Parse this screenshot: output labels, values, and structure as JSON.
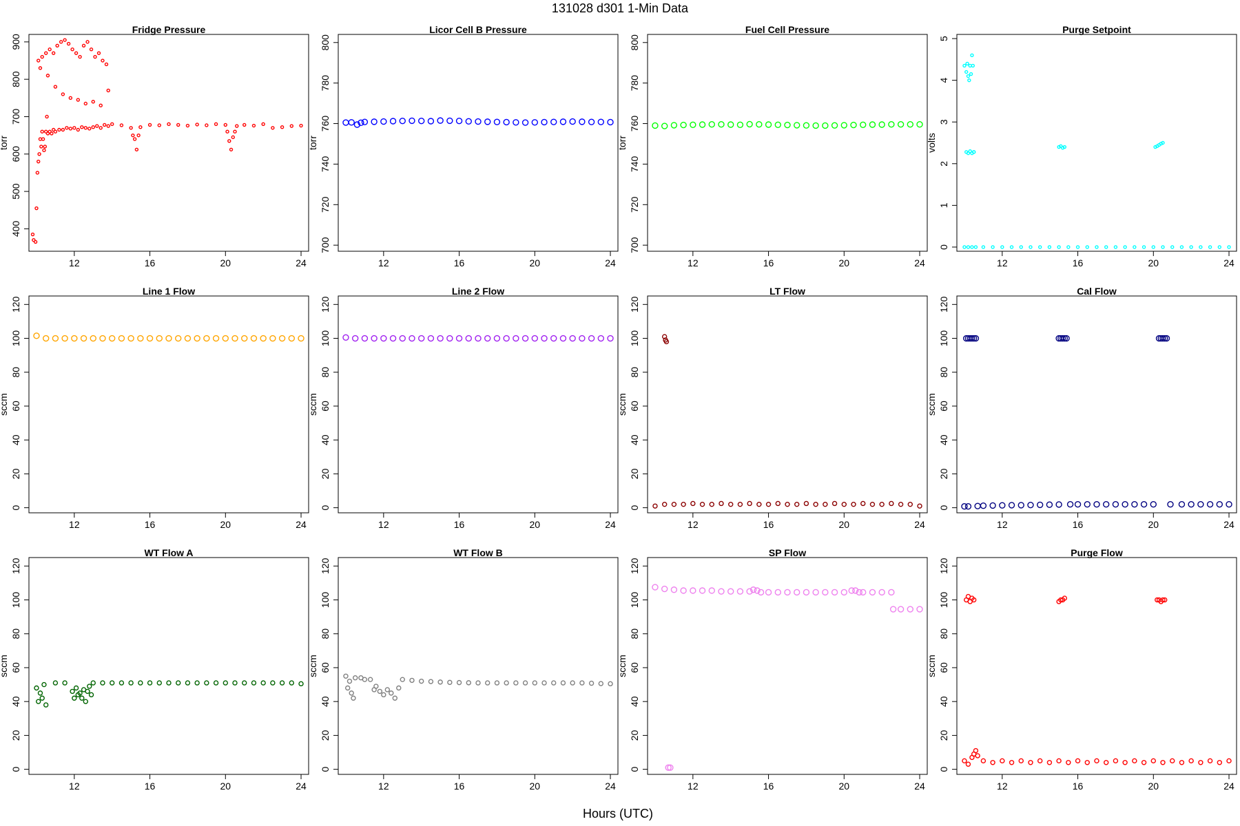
{
  "figure": {
    "title": "131028   d301   1-Min Data",
    "xlabel": "Hours (UTC)"
  },
  "chart_data": [
    {
      "type": "scatter",
      "title": "Fridge Pressure",
      "ylabel": "torr",
      "color": "#ff0000",
      "xlim": [
        9.6,
        24.4
      ],
      "ylim": [
        340,
        920
      ],
      "xticks": [
        12,
        16,
        20,
        24
      ],
      "yticks": [
        400,
        500,
        600,
        700,
        800,
        900
      ],
      "x": [
        9.8,
        9.85,
        9.95,
        10.0,
        10.05,
        10.1,
        10.15,
        10.2,
        10.25,
        10.3,
        10.35,
        10.4,
        10.45,
        10.5,
        10.55,
        10.6,
        10.7,
        10.8,
        10.9,
        11.0,
        11.2,
        11.4,
        11.6,
        11.8,
        12.0,
        12.2,
        12.4,
        12.6,
        12.8,
        13.0,
        13.2,
        13.4,
        13.6,
        13.8,
        14.0,
        14.5,
        15.0,
        15.1,
        15.2,
        15.3,
        15.4,
        15.5,
        16.0,
        16.5,
        17.0,
        17.5,
        18.0,
        18.5,
        19.0,
        19.5,
        20.0,
        20.1,
        20.2,
        20.3,
        20.4,
        20.5,
        20.6,
        21.0,
        21.5,
        22.0,
        22.5,
        23.0,
        23.5,
        24.0,
        10.1,
        10.3,
        10.5,
        10.7,
        10.9,
        11.1,
        11.3,
        11.5,
        11.7,
        11.9,
        12.1,
        12.3,
        12.5,
        12.7,
        12.9,
        13.1,
        13.3,
        13.5,
        13.7,
        10.2,
        10.6,
        11.0,
        11.4,
        11.8,
        12.2,
        12.6,
        13.0,
        13.4,
        13.8
      ],
      "y": [
        385,
        370,
        365,
        455,
        550,
        580,
        600,
        640,
        620,
        660,
        640,
        610,
        620,
        660,
        700,
        655,
        660,
        655,
        665,
        660,
        665,
        665,
        670,
        668,
        670,
        665,
        672,
        670,
        668,
        672,
        675,
        670,
        678,
        675,
        680,
        677,
        670,
        650,
        640,
        612,
        650,
        672,
        678,
        677,
        680,
        678,
        676,
        679,
        677,
        680,
        678,
        660,
        635,
        612,
        645,
        660,
        675,
        678,
        676,
        680,
        670,
        672,
        675,
        676,
        850,
        860,
        870,
        880,
        870,
        890,
        900,
        905,
        895,
        880,
        870,
        860,
        890,
        900,
        880,
        860,
        870,
        850,
        840,
        830,
        810,
        780,
        760,
        750,
        745,
        735,
        740,
        730,
        770
      ],
      "size": 2
    },
    {
      "type": "scatter",
      "title": "Licor Cell B Pressure",
      "ylabel": "torr",
      "color": "#0000ff",
      "xlim": [
        9.6,
        24.4
      ],
      "ylim": [
        697,
        804
      ],
      "xticks": [
        12,
        16,
        20,
        24
      ],
      "yticks": [
        700,
        720,
        740,
        760,
        780,
        800
      ],
      "x": [
        10.0,
        10.3,
        10.6,
        10.8,
        11.0,
        11.5,
        12.0,
        12.5,
        13.0,
        13.5,
        14.0,
        14.5,
        15.0,
        15.5,
        16.0,
        16.5,
        17.0,
        17.5,
        18.0,
        18.5,
        19.0,
        19.5,
        20.0,
        20.5,
        21.0,
        21.5,
        22.0,
        22.5,
        23.0,
        23.5,
        24.0
      ],
      "y": [
        760.5,
        760.6,
        759.5,
        760.4,
        760.8,
        760.9,
        761.0,
        761.2,
        761.3,
        761.4,
        761.3,
        761.2,
        761.5,
        761.4,
        761.3,
        761.1,
        761.0,
        760.9,
        760.8,
        760.7,
        760.6,
        760.5,
        760.6,
        760.7,
        760.8,
        760.9,
        761.0,
        760.9,
        760.8,
        760.8,
        760.7
      ],
      "size": 4
    },
    {
      "type": "scatter",
      "title": "Fuel Cell Pressure",
      "ylabel": "torr",
      "color": "#00ff00",
      "xlim": [
        9.6,
        24.4
      ],
      "ylim": [
        697,
        804
      ],
      "xticks": [
        12,
        16,
        20,
        24
      ],
      "yticks": [
        700,
        720,
        740,
        760,
        780,
        800
      ],
      "x": [
        10.0,
        10.5,
        11.0,
        11.5,
        12.0,
        12.5,
        13.0,
        13.5,
        14.0,
        14.5,
        15.0,
        15.5,
        16.0,
        16.5,
        17.0,
        17.5,
        18.0,
        18.5,
        19.0,
        19.5,
        20.0,
        20.5,
        21.0,
        21.5,
        22.0,
        22.5,
        23.0,
        23.5,
        24.0
      ],
      "y": [
        759.0,
        758.8,
        759.2,
        759.3,
        759.4,
        759.5,
        759.6,
        759.6,
        759.5,
        759.4,
        759.7,
        759.6,
        759.5,
        759.4,
        759.3,
        759.2,
        759.1,
        759.0,
        759.0,
        759.1,
        759.2,
        759.3,
        759.4,
        759.5,
        759.5,
        759.6,
        759.6,
        759.6,
        759.6
      ],
      "size": 4
    },
    {
      "type": "scatter",
      "title": "Purge Setpoint",
      "ylabel": "volts",
      "color": "#00ffff",
      "xlim": [
        9.6,
        24.4
      ],
      "ylim": [
        -0.1,
        5.1
      ],
      "xticks": [
        12,
        16,
        20,
        24
      ],
      "yticks": [
        0,
        1,
        2,
        3,
        4,
        5
      ],
      "x": [
        10.0,
        10.1,
        10.15,
        10.2,
        10.25,
        10.3,
        10.35,
        10.4,
        10.45,
        10.5,
        10.1,
        10.2,
        10.3,
        10.4,
        10.5,
        10.0,
        10.2,
        10.4,
        10.6,
        11.0,
        11.5,
        12.0,
        12.5,
        13.0,
        13.5,
        14.0,
        14.5,
        15.0,
        15.5,
        16.0,
        16.5,
        17.0,
        17.5,
        18.0,
        18.5,
        19.0,
        19.5,
        20.0,
        20.5,
        21.0,
        21.5,
        22.0,
        22.5,
        23.0,
        23.5,
        24.0,
        15.0,
        15.1,
        15.2,
        15.3,
        20.1,
        20.2,
        20.3,
        20.4,
        20.5
      ],
      "y": [
        4.35,
        4.2,
        4.4,
        4.1,
        4.0,
        4.35,
        4.15,
        4.6,
        4.35,
        2.28,
        2.28,
        2.25,
        2.3,
        2.25,
        2.28,
        0,
        0,
        0,
        0,
        0,
        0,
        0,
        0,
        0,
        0,
        0,
        0,
        0,
        0,
        0,
        0,
        0,
        0,
        0,
        0,
        0,
        0,
        0,
        0,
        0,
        0,
        0,
        0,
        0,
        0,
        0,
        2.4,
        2.42,
        2.38,
        2.4,
        2.4,
        2.42,
        2.45,
        2.48,
        2.5
      ],
      "size": 2
    },
    {
      "type": "scatter",
      "title": "Line 1 Flow",
      "ylabel": "sccm",
      "color": "#ffa500",
      "xlim": [
        9.6,
        24.4
      ],
      "ylim": [
        -3,
        125
      ],
      "xticks": [
        12,
        16,
        20,
        24
      ],
      "yticks": [
        0,
        20,
        40,
        60,
        80,
        100,
        120
      ],
      "x": [
        10.0,
        10.5,
        11.0,
        11.5,
        12.0,
        12.5,
        13.0,
        13.5,
        14.0,
        14.5,
        15.0,
        15.5,
        16.0,
        16.5,
        17.0,
        17.5,
        18.0,
        18.5,
        19.0,
        19.5,
        20.0,
        20.5,
        21.0,
        21.5,
        22.0,
        22.5,
        23.0,
        23.5,
        24.0
      ],
      "y": [
        101.5,
        100,
        100,
        100,
        100,
        100,
        100,
        100,
        100,
        100,
        100,
        100,
        100,
        100,
        100,
        100,
        100,
        100,
        100,
        100,
        100,
        100,
        100,
        100,
        100,
        100,
        100,
        100,
        100
      ],
      "size": 4
    },
    {
      "type": "scatter",
      "title": "Line 2 Flow",
      "ylabel": "sccm",
      "color": "#a020f0",
      "xlim": [
        9.6,
        24.4
      ],
      "ylim": [
        -3,
        125
      ],
      "xticks": [
        12,
        16,
        20,
        24
      ],
      "yticks": [
        0,
        20,
        40,
        60,
        80,
        100,
        120
      ],
      "x": [
        10.0,
        10.5,
        11.0,
        11.5,
        12.0,
        12.5,
        13.0,
        13.5,
        14.0,
        14.5,
        15.0,
        15.5,
        16.0,
        16.5,
        17.0,
        17.5,
        18.0,
        18.5,
        19.0,
        19.5,
        20.0,
        20.5,
        21.0,
        21.5,
        22.0,
        22.5,
        23.0,
        23.5,
        24.0
      ],
      "y": [
        100.5,
        100,
        100,
        100,
        100,
        100,
        100,
        100,
        100,
        100,
        100,
        100,
        100,
        100,
        100,
        100,
        100,
        100,
        100,
        100,
        100,
        100,
        100,
        100,
        100,
        100,
        100,
        100,
        100
      ],
      "size": 4
    },
    {
      "type": "scatter",
      "title": "LT Flow",
      "ylabel": "sccm",
      "color": "#8b0000",
      "xlim": [
        9.6,
        24.4
      ],
      "ylim": [
        -3,
        125
      ],
      "xticks": [
        12,
        16,
        20,
        24
      ],
      "yticks": [
        0,
        20,
        40,
        60,
        80,
        100,
        120
      ],
      "x": [
        10.5,
        10.55,
        10.6,
        10.0,
        10.5,
        11.0,
        11.5,
        12.0,
        12.5,
        13.0,
        13.5,
        14.0,
        14.5,
        15.0,
        15.5,
        16.0,
        16.5,
        17.0,
        17.5,
        18.0,
        18.5,
        19.0,
        19.5,
        20.0,
        20.5,
        21.0,
        21.5,
        22.0,
        22.5,
        23.0,
        23.5,
        24.0
      ],
      "y": [
        101,
        99,
        98,
        1,
        2,
        2,
        2,
        2.5,
        2,
        2,
        2.5,
        2,
        2,
        2.5,
        2,
        2,
        2.5,
        2,
        2,
        2.5,
        2,
        2,
        2.5,
        2,
        2,
        2.5,
        2,
        2,
        2.5,
        2,
        2,
        1
      ],
      "size": 3
    },
    {
      "type": "scatter",
      "title": "Cal Flow",
      "ylabel": "sccm",
      "color": "#000080",
      "xlim": [
        9.6,
        24.4
      ],
      "ylim": [
        -3,
        125
      ],
      "xticks": [
        12,
        16,
        20,
        24
      ],
      "yticks": [
        0,
        20,
        40,
        60,
        80,
        100,
        120
      ],
      "x": [
        10.1,
        10.2,
        10.3,
        10.4,
        10.5,
        10.6,
        15.0,
        15.1,
        15.2,
        15.3,
        15.4,
        20.3,
        20.4,
        20.5,
        20.6,
        20.7,
        10.0,
        10.2,
        10.7,
        11.0,
        11.5,
        12.0,
        12.5,
        13.0,
        13.5,
        14.0,
        14.5,
        15.0,
        15.6,
        16.0,
        16.5,
        17.0,
        17.5,
        18.0,
        18.5,
        19.0,
        19.5,
        20.0,
        20.9,
        21.5,
        22.0,
        22.5,
        23.0,
        23.5,
        24.0
      ],
      "y": [
        100,
        100,
        100,
        100,
        100,
        100,
        100,
        100,
        100,
        100,
        100,
        100,
        100,
        100,
        100,
        100,
        0.8,
        0.8,
        1,
        1.2,
        1.3,
        1.4,
        1.5,
        1.5,
        1.6,
        1.7,
        1.8,
        1.9,
        2,
        2,
        2,
        2,
        2,
        2,
        2,
        2,
        2,
        2,
        2,
        2,
        2,
        2,
        2,
        2,
        2
      ],
      "size": 4
    },
    {
      "type": "scatter",
      "title": "WT Flow A",
      "ylabel": "sccm",
      "color": "#006400",
      "xlim": [
        9.6,
        24.4
      ],
      "ylim": [
        -3,
        125
      ],
      "xticks": [
        12,
        16,
        20,
        24
      ],
      "yticks": [
        0,
        20,
        40,
        60,
        80,
        100,
        120
      ],
      "x": [
        10.0,
        10.1,
        10.2,
        10.3,
        10.4,
        10.5,
        11.0,
        11.5,
        11.9,
        12.0,
        12.1,
        12.2,
        12.3,
        12.4,
        12.5,
        12.6,
        12.7,
        12.8,
        12.9,
        13.0,
        13.5,
        14.0,
        14.5,
        15.0,
        15.5,
        16.0,
        16.5,
        17.0,
        17.5,
        18.0,
        18.5,
        19.0,
        19.5,
        20.0,
        20.5,
        21.0,
        21.5,
        22.0,
        22.5,
        23.0,
        23.5,
        24.0
      ],
      "y": [
        48,
        40,
        45,
        42,
        50,
        38,
        51,
        51,
        46,
        42,
        48,
        44,
        45,
        42,
        47,
        40,
        46,
        49,
        44,
        51,
        51,
        51,
        51,
        51,
        51,
        51,
        51,
        51,
        51,
        51,
        51,
        51,
        51,
        51,
        51,
        51,
        51,
        51,
        51,
        51,
        51,
        50.5
      ],
      "size": 3
    },
    {
      "type": "scatter",
      "title": "WT Flow B",
      "ylabel": "sccm",
      "color": "#808080",
      "xlim": [
        9.6,
        24.4
      ],
      "ylim": [
        -3,
        125
      ],
      "xticks": [
        12,
        16,
        20,
        24
      ],
      "yticks": [
        0,
        20,
        40,
        60,
        80,
        100,
        120
      ],
      "x": [
        10.0,
        10.1,
        10.2,
        10.3,
        10.4,
        10.5,
        10.8,
        11.0,
        11.3,
        11.5,
        11.6,
        11.8,
        12.0,
        12.2,
        12.4,
        12.6,
        12.8,
        13.0,
        13.5,
        14.0,
        14.5,
        15.0,
        15.5,
        16.0,
        16.5,
        17.0,
        17.5,
        18.0,
        18.5,
        19.0,
        19.5,
        20.0,
        20.5,
        21.0,
        21.5,
        22.0,
        22.5,
        23.0,
        23.5,
        24.0
      ],
      "y": [
        55,
        48,
        52,
        45,
        42,
        54,
        54,
        53,
        53,
        47,
        49,
        46,
        44,
        47,
        45,
        42,
        48,
        53,
        52.5,
        52,
        51.8,
        51.5,
        51.3,
        51.2,
        51.1,
        51,
        51,
        51,
        51,
        51,
        51,
        51,
        51,
        51,
        51,
        51,
        51,
        50.8,
        50.6,
        50.5
      ],
      "size": 3
    },
    {
      "type": "scatter",
      "title": "SP Flow",
      "ylabel": "sccm",
      "color": "#ee82ee",
      "xlim": [
        9.6,
        24.4
      ],
      "ylim": [
        -3,
        125
      ],
      "xticks": [
        12,
        16,
        20,
        24
      ],
      "yticks": [
        0,
        20,
        40,
        60,
        80,
        100,
        120
      ],
      "x": [
        10.0,
        10.5,
        11.0,
        11.5,
        12.0,
        12.5,
        13.0,
        13.5,
        14.0,
        14.5,
        15.0,
        15.2,
        15.4,
        15.6,
        16.0,
        16.5,
        17.0,
        17.5,
        18.0,
        18.5,
        19.0,
        19.5,
        20.0,
        20.4,
        20.6,
        20.8,
        21.0,
        21.5,
        22.0,
        22.5,
        22.6,
        23.0,
        23.5,
        24.0,
        10.7,
        10.8
      ],
      "y": [
        107.5,
        106.5,
        106,
        105.5,
        105.5,
        105.5,
        105.5,
        105,
        105,
        105,
        105,
        106,
        105.5,
        104.5,
        104.5,
        104.5,
        104.5,
        104.5,
        104.5,
        104.5,
        104.5,
        104.5,
        104.5,
        105.5,
        105.5,
        104.5,
        104.5,
        104.5,
        104.5,
        104.5,
        94.5,
        94.5,
        94.5,
        94.5,
        1,
        1
      ],
      "size": 4
    },
    {
      "type": "scatter",
      "title": "Purge Flow",
      "ylabel": "sccm",
      "color": "#ff0000",
      "xlim": [
        9.6,
        24.4
      ],
      "ylim": [
        -3,
        125
      ],
      "xticks": [
        12,
        16,
        20,
        24
      ],
      "yticks": [
        0,
        20,
        40,
        60,
        80,
        100,
        120
      ],
      "x": [
        10.1,
        10.2,
        10.3,
        10.4,
        10.5,
        15.0,
        15.1,
        15.2,
        15.3,
        20.2,
        20.3,
        20.4,
        20.5,
        20.6,
        10.0,
        10.2,
        10.4,
        10.5,
        10.6,
        10.7,
        11.0,
        11.5,
        12.0,
        12.5,
        13.0,
        13.5,
        14.0,
        14.5,
        15.0,
        15.5,
        16.0,
        16.5,
        17.0,
        17.5,
        18.0,
        18.5,
        19.0,
        19.5,
        20.0,
        20.5,
        21.0,
        21.5,
        22.0,
        22.5,
        23.0,
        23.5,
        24.0
      ],
      "y": [
        100,
        102,
        99,
        101,
        100,
        99,
        100,
        100,
        101,
        100,
        100,
        99,
        100,
        100,
        5,
        3,
        7,
        9,
        11,
        8,
        5,
        4,
        5,
        4,
        5,
        4,
        5,
        4,
        5,
        4,
        5,
        4,
        5,
        4,
        5,
        4,
        5,
        4,
        5,
        4,
        5,
        4,
        5,
        4,
        5,
        4,
        5
      ],
      "size": 3
    }
  ]
}
